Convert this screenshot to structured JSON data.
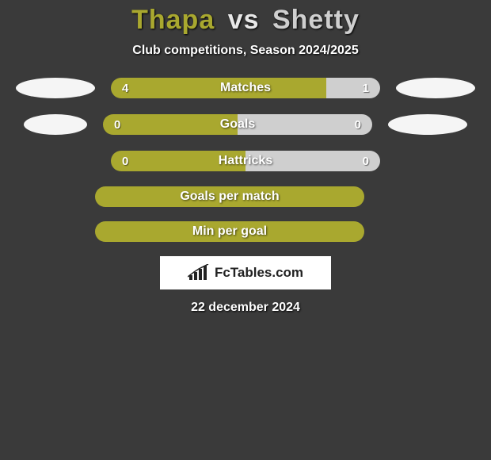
{
  "title": {
    "player1": "Thapa",
    "vs": "vs",
    "player2": "Shetty",
    "p1_color": "#a9a82f",
    "vs_color": "#e8e8e8",
    "p2_color": "#cfcfcf"
  },
  "subtitle": "Club competitions, Season 2024/2025",
  "colors": {
    "bar_left": "#a9a82f",
    "bar_right": "#cfcfcf",
    "background": "#3a3a3a"
  },
  "stat_rows": [
    {
      "label": "Matches",
      "left_val": "4",
      "right_val": "1",
      "left_pct": 80,
      "has_logos": true,
      "logo_left_width": 100,
      "logo_right_width": 100
    },
    {
      "label": "Goals",
      "left_val": "0",
      "right_val": "0",
      "left_pct": 50,
      "has_logos": true,
      "logo_left_width": 80,
      "logo_right_width": 100
    },
    {
      "label": "Hattricks",
      "left_val": "0",
      "right_val": "0",
      "left_pct": 50,
      "has_logos": false
    }
  ],
  "solid_rows": [
    {
      "label": "Goals per match"
    },
    {
      "label": "Min per goal"
    }
  ],
  "branding": "FcTables.com",
  "date": "22 december 2024"
}
